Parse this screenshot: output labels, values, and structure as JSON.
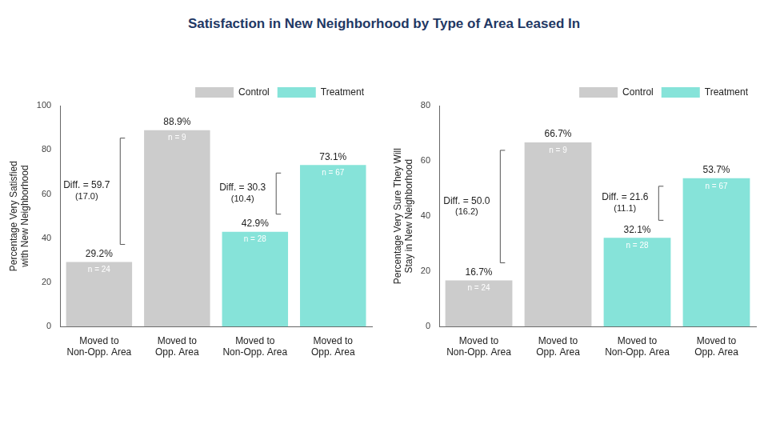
{
  "title": "Satisfaction in New Neighborhood by Type of Area Leased In",
  "chart_data": [
    {
      "type": "bar",
      "y_label": [
        "Percentage Very Satisfied",
        "with New Neighborhood"
      ],
      "categories": [
        "Moved to Non-Opp. Area",
        "Moved to Opp. Area",
        "Moved to Non-Opp. Area",
        "Moved to Opp. Area"
      ],
      "series": [
        {
          "name": "Control",
          "color": "#cccccc",
          "values": [
            29.2,
            88.9,
            null,
            null
          ],
          "value_labels": [
            "29.2%",
            "88.9%",
            null,
            null
          ],
          "n_labels": [
            "n = 24",
            "n = 9",
            null,
            null
          ]
        },
        {
          "name": "Treatment",
          "color": "#86e3d9",
          "values": [
            null,
            null,
            42.9,
            73.1
          ],
          "value_labels": [
            null,
            null,
            "42.9%",
            "73.1%"
          ],
          "n_labels": [
            null,
            null,
            "n = 28",
            "n = 67"
          ]
        }
      ],
      "annotations": [
        {
          "series": "Control",
          "text": [
            "Diff. = 59.7",
            "(17.0)"
          ]
        },
        {
          "series": "Treatment",
          "text": [
            "Diff. = 30.3",
            "(10.4)"
          ]
        }
      ],
      "ylim": [
        0,
        100
      ],
      "yticks": [
        0,
        20,
        40,
        60,
        80,
        100
      ],
      "grid": false,
      "legend": "top-right",
      "data_labels": true
    },
    {
      "type": "bar",
      "y_label": [
        "Percentage Very Sure They Will",
        "Stay in New Neighborhood"
      ],
      "categories": [
        "Moved to Non-Opp. Area",
        "Moved to Opp. Area",
        "Moved to Non-Opp. Area",
        "Moved to Opp. Area"
      ],
      "series": [
        {
          "name": "Control",
          "color": "#cccccc",
          "values": [
            16.7,
            66.7,
            null,
            null
          ],
          "value_labels": [
            "16.7%",
            "66.7%",
            null,
            null
          ],
          "n_labels": [
            "n = 24",
            "n = 9",
            null,
            null
          ]
        },
        {
          "name": "Treatment",
          "color": "#86e3d9",
          "values": [
            null,
            null,
            32.1,
            53.7
          ],
          "value_labels": [
            null,
            null,
            "32.1%",
            "53.7%"
          ],
          "n_labels": [
            null,
            null,
            "n = 28",
            "n = 67"
          ]
        }
      ],
      "annotations": [
        {
          "series": "Control",
          "text": [
            "Diff. = 50.0",
            "(16.2)"
          ]
        },
        {
          "series": "Treatment",
          "text": [
            "Diff. = 21.6",
            "(11.1)"
          ]
        }
      ],
      "ylim": [
        0,
        80
      ],
      "yticks": [
        0,
        20,
        40,
        60,
        80
      ],
      "grid": false,
      "legend": "top-right",
      "data_labels": true
    }
  ]
}
